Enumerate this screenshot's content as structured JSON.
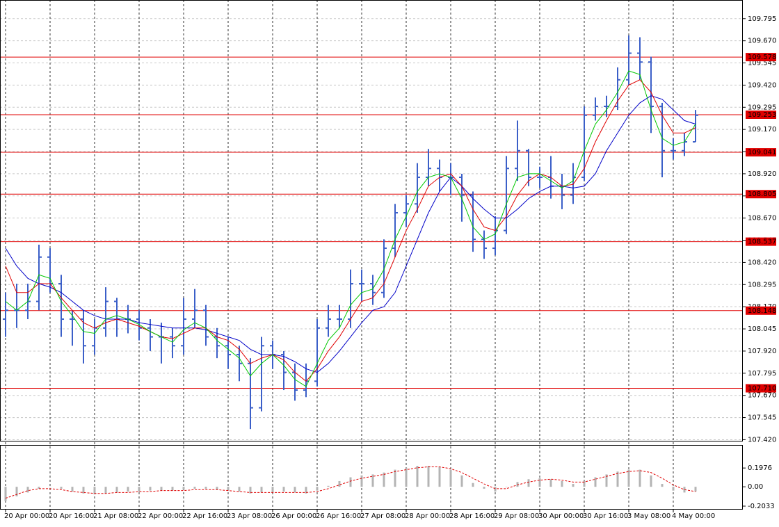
{
  "chart_data": [
    {
      "type": "ohlc",
      "color": "#3b5fc8",
      "xlim": [
        -0.5,
        66.25
      ],
      "ylim": [
        107.41,
        109.9
      ],
      "grid": true,
      "xticks": [
        {
          "value": 0,
          "label": "20 Apr 00:00"
        },
        {
          "value": 4,
          "label": "20 Apr 16:00"
        },
        {
          "value": 8,
          "label": "21 Apr 08:00"
        },
        {
          "value": 12,
          "label": "22 Apr 00:00"
        },
        {
          "value": 16,
          "label": "22 Apr 16:00"
        },
        {
          "value": 20,
          "label": "23 Apr 08:00"
        },
        {
          "value": 24,
          "label": "26 Apr 00:00"
        },
        {
          "value": 28,
          "label": "26 Apr 16:00"
        },
        {
          "value": 32,
          "label": "27 Apr 08:00"
        },
        {
          "value": 36,
          "label": "28 Apr 00:00"
        },
        {
          "value": 40,
          "label": "28 Apr 16:00"
        },
        {
          "value": 44,
          "label": "29 Apr 08:00"
        },
        {
          "value": 48,
          "label": "30 Apr 00:00"
        },
        {
          "value": 52,
          "label": "30 Apr 16:00"
        },
        {
          "value": 56,
          "label": "3 May 08:00"
        },
        {
          "value": 60,
          "label": "4 May 00:00"
        }
      ],
      "yticks": [
        {
          "value": 109.795,
          "label": "109.795"
        },
        {
          "value": 109.67,
          "label": "109.670"
        },
        {
          "value": 109.545,
          "label": "109.545"
        },
        {
          "value": 109.42,
          "label": "109.420"
        },
        {
          "value": 109.295,
          "label": "109.295"
        },
        {
          "value": 109.17,
          "label": "109.170"
        },
        {
          "value": 109.045,
          "label": "109.045"
        },
        {
          "value": 108.92,
          "label": "108.920"
        },
        {
          "value": 108.795,
          "label": "108.795"
        },
        {
          "value": 108.67,
          "label": "108.670"
        },
        {
          "value": 108.545,
          "label": "108.545"
        },
        {
          "value": 108.42,
          "label": "108.420"
        },
        {
          "value": 108.295,
          "label": "108.295"
        },
        {
          "value": 108.17,
          "label": "108.170"
        },
        {
          "value": 108.045,
          "label": "108.045"
        },
        {
          "value": 107.92,
          "label": "107.920"
        },
        {
          "value": 107.795,
          "label": "107.795"
        },
        {
          "value": 107.67,
          "label": "107.670"
        },
        {
          "value": 107.545,
          "label": "107.545"
        },
        {
          "value": 107.42,
          "label": "107.420"
        }
      ],
      "level_color": "#e00000",
      "levels": [
        {
          "value": 109.578,
          "label": "109.578"
        },
        {
          "value": 109.253,
          "label": "109.253"
        },
        {
          "value": 109.041,
          "label": "109.041"
        },
        {
          "value": 108.805,
          "label": "108.805"
        },
        {
          "value": 108.537,
          "label": "108.537"
        },
        {
          "value": 108.148,
          "label": "108.148"
        },
        {
          "value": 107.71,
          "label": "107.710"
        }
      ],
      "open": [
        108.1,
        108.15,
        108.15,
        108.2,
        108.45,
        108.3,
        108.1,
        108.1,
        107.95,
        108.05,
        108.2,
        108.1,
        108.1,
        108.05,
        108.0,
        108.0,
        107.95,
        108.1,
        108.15,
        108.0,
        107.95,
        107.9,
        107.85,
        107.6,
        107.95,
        107.9,
        107.8,
        107.7,
        107.75,
        108.05,
        108.1,
        108.1,
        108.3,
        108.3,
        108.25,
        108.5,
        108.7,
        108.75,
        108.9,
        108.95,
        108.9,
        108.9,
        108.8,
        108.55,
        108.5,
        108.6,
        108.95,
        109.05,
        108.9,
        108.9,
        108.85,
        108.8,
        108.9,
        109.25,
        109.3,
        109.3,
        109.45,
        109.6,
        109.55,
        109.3,
        109.05,
        109.05,
        109.1
      ],
      "high": [
        108.25,
        108.3,
        108.3,
        108.52,
        108.5,
        108.35,
        108.15,
        108.15,
        108.1,
        108.28,
        108.22,
        108.18,
        108.15,
        108.1,
        108.08,
        108.05,
        108.22,
        108.27,
        108.18,
        108.05,
        108.0,
        107.95,
        107.88,
        108.0,
        107.98,
        107.92,
        107.85,
        107.85,
        108.1,
        108.18,
        108.18,
        108.38,
        108.38,
        108.35,
        108.55,
        108.75,
        108.8,
        108.98,
        109.06,
        109.0,
        108.98,
        108.92,
        108.82,
        108.6,
        108.68,
        109.02,
        109.22,
        109.06,
        108.96,
        109.02,
        108.92,
        108.98,
        109.3,
        109.35,
        109.36,
        109.52,
        109.7,
        109.69,
        109.58,
        109.32,
        109.12,
        109.15,
        109.28
      ],
      "low": [
        108.0,
        108.05,
        108.1,
        108.15,
        108.25,
        108.0,
        107.95,
        107.85,
        107.9,
        108.0,
        108.0,
        108.02,
        107.98,
        107.92,
        107.85,
        107.88,
        107.9,
        108.05,
        107.95,
        107.88,
        107.82,
        107.75,
        107.48,
        107.58,
        107.82,
        107.7,
        107.64,
        107.66,
        107.72,
        108.0,
        108.05,
        108.05,
        108.2,
        108.18,
        108.22,
        108.45,
        108.62,
        108.7,
        108.85,
        108.82,
        108.8,
        108.65,
        108.48,
        108.44,
        108.46,
        108.58,
        108.88,
        108.85,
        108.84,
        108.78,
        108.72,
        108.75,
        108.88,
        109.22,
        109.24,
        109.28,
        109.42,
        109.45,
        109.15,
        108.9,
        109.0,
        109.02,
        109.1
      ],
      "close": [
        108.15,
        108.15,
        108.2,
        108.45,
        108.3,
        108.1,
        108.1,
        107.95,
        108.05,
        108.2,
        108.1,
        108.1,
        108.05,
        108.0,
        108.0,
        107.95,
        108.1,
        108.15,
        108.0,
        107.95,
        107.9,
        107.85,
        107.6,
        107.95,
        107.9,
        107.8,
        107.7,
        107.75,
        108.05,
        108.1,
        108.1,
        108.3,
        108.3,
        108.25,
        108.5,
        108.7,
        108.75,
        108.9,
        108.95,
        108.9,
        108.9,
        108.8,
        108.55,
        108.5,
        108.6,
        108.95,
        109.05,
        108.9,
        108.9,
        108.85,
        108.8,
        108.9,
        109.25,
        109.3,
        109.3,
        109.45,
        109.6,
        109.55,
        109.3,
        109.05,
        109.05,
        109.1,
        109.25
      ],
      "lines": [
        {
          "color": "#0000c8",
          "values": [
            108.5,
            108.4,
            108.33,
            108.3,
            108.28,
            108.25,
            108.2,
            108.15,
            108.12,
            108.1,
            108.1,
            108.1,
            108.08,
            108.07,
            108.06,
            108.05,
            108.05,
            108.05,
            108.04,
            108.02,
            108.0,
            107.98,
            107.93,
            107.9,
            107.9,
            107.89,
            107.86,
            107.82,
            107.8,
            107.85,
            107.92,
            108.0,
            108.08,
            108.15,
            108.17,
            108.25,
            108.4,
            108.55,
            108.7,
            108.82,
            108.9,
            108.85,
            108.78,
            108.72,
            108.67,
            108.67,
            108.72,
            108.78,
            108.82,
            108.85,
            108.85,
            108.84,
            108.85,
            108.92,
            109.05,
            109.15,
            109.25,
            109.32,
            109.36,
            109.34,
            109.28,
            109.22,
            109.2
          ]
        },
        {
          "color": "#e00000",
          "values": [
            108.4,
            108.25,
            108.25,
            108.3,
            108.3,
            108.22,
            108.15,
            108.08,
            108.05,
            108.08,
            108.1,
            108.08,
            108.06,
            108.03,
            108.0,
            107.99,
            108.02,
            108.05,
            108.05,
            108.0,
            107.98,
            107.93,
            107.85,
            107.88,
            107.9,
            107.87,
            107.8,
            107.75,
            107.82,
            107.92,
            108.0,
            108.1,
            108.2,
            108.22,
            108.3,
            108.45,
            108.6,
            108.72,
            108.85,
            108.9,
            108.92,
            108.85,
            108.72,
            108.62,
            108.6,
            108.68,
            108.8,
            108.88,
            108.92,
            108.9,
            108.85,
            108.86,
            108.95,
            109.1,
            109.22,
            109.33,
            109.42,
            109.45,
            109.38,
            109.25,
            109.15,
            109.15,
            109.18
          ]
        },
        {
          "color": "#00c800",
          "values": [
            108.2,
            108.15,
            108.2,
            108.35,
            108.33,
            108.2,
            108.12,
            108.03,
            108.02,
            108.1,
            108.12,
            108.1,
            108.07,
            108.03,
            108.0,
            107.97,
            108.04,
            108.08,
            108.05,
            107.98,
            107.93,
            107.88,
            107.78,
            107.85,
            107.9,
            107.84,
            107.76,
            107.72,
            107.85,
            107.98,
            108.05,
            108.18,
            108.25,
            108.27,
            108.38,
            108.55,
            108.68,
            108.82,
            108.9,
            108.92,
            108.9,
            108.78,
            108.62,
            108.55,
            108.58,
            108.75,
            108.9,
            108.92,
            108.92,
            108.88,
            108.84,
            108.88,
            109.05,
            109.2,
            109.28,
            109.38,
            109.5,
            109.48,
            109.28,
            109.12,
            109.08,
            109.1,
            109.2
          ]
        }
      ]
    },
    {
      "type": "macd",
      "color": "#b4b4b4",
      "signal_color": "#e00000",
      "ylim": [
        -0.24,
        0.44
      ],
      "yticks": [
        0.1976,
        {
          "value": 0,
          "label": "0.00"
        },
        -0.2033
      ],
      "values": [
        -0.15,
        -0.1,
        -0.06,
        -0.02,
        0.0,
        -0.02,
        -0.05,
        -0.07,
        -0.08,
        -0.07,
        -0.06,
        -0.05,
        -0.05,
        -0.04,
        -0.04,
        -0.04,
        -0.03,
        -0.02,
        -0.02,
        -0.03,
        -0.04,
        -0.05,
        -0.07,
        -0.06,
        -0.06,
        -0.05,
        -0.06,
        -0.07,
        -0.04,
        0.01,
        0.06,
        0.1,
        0.12,
        0.13,
        0.15,
        0.18,
        0.2,
        0.22,
        0.22,
        0.21,
        0.18,
        0.12,
        0.04,
        -0.02,
        -0.05,
        0.0,
        0.05,
        0.08,
        0.09,
        0.08,
        0.06,
        0.03,
        0.06,
        0.1,
        0.13,
        0.16,
        0.18,
        0.18,
        0.12,
        0.03,
        -0.04,
        -0.06,
        -0.05
      ],
      "signal": [
        -0.12,
        -0.08,
        -0.04,
        -0.02,
        -0.02,
        -0.03,
        -0.05,
        -0.06,
        -0.07,
        -0.07,
        -0.06,
        -0.06,
        -0.05,
        -0.05,
        -0.04,
        -0.04,
        -0.04,
        -0.03,
        -0.03,
        -0.03,
        -0.04,
        -0.05,
        -0.06,
        -0.06,
        -0.06,
        -0.06,
        -0.06,
        -0.06,
        -0.05,
        -0.02,
        0.02,
        0.06,
        0.09,
        0.11,
        0.13,
        0.16,
        0.18,
        0.2,
        0.21,
        0.21,
        0.19,
        0.15,
        0.09,
        0.03,
        -0.02,
        -0.02,
        0.02,
        0.05,
        0.07,
        0.08,
        0.07,
        0.05,
        0.05,
        0.08,
        0.11,
        0.14,
        0.16,
        0.17,
        0.15,
        0.09,
        0.02,
        -0.03,
        -0.05
      ]
    }
  ]
}
